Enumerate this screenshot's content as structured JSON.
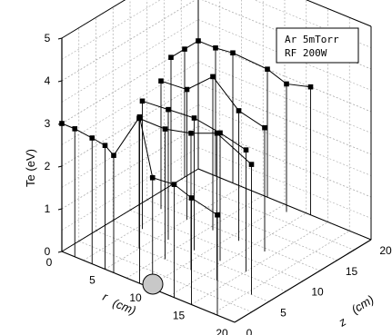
{
  "chart_data": {
    "type": "scatter",
    "projection": "3d",
    "title": "",
    "legend_lines": [
      "Ar 5mTorr",
      "RF 200W"
    ],
    "zlabel": "Te (eV)",
    "rlabel_main": "r",
    "rlabel_unit": "(cm)",
    "zaxis_label_main": "z",
    "zaxis_label_unit": "(cm)",
    "te_ticks": [
      "0",
      "1",
      "2",
      "3",
      "4",
      "5"
    ],
    "r_ticks": [
      "0",
      "5",
      "10",
      "15",
      "20"
    ],
    "z_ticks": [
      "0",
      "5",
      "10",
      "15",
      "20"
    ],
    "te_range": [
      0,
      5
    ],
    "r_range": [
      0,
      20
    ],
    "z_range": [
      0,
      20
    ],
    "grid": true,
    "series": [
      {
        "points": [
          {
            "r": 0,
            "z": 0,
            "te": 3.0
          },
          {
            "r": 1.5,
            "z": 0,
            "te": 3.0
          },
          {
            "r": 3.5,
            "z": 0,
            "te": 2.95
          },
          {
            "r": 5,
            "z": 0,
            "te": 2.9
          },
          {
            "r": 6,
            "z": 0,
            "te": 2.75
          },
          {
            "r": 9,
            "z": 0,
            "te": 3.9
          },
          {
            "r": 10.5,
            "z": 0,
            "te": 2.6
          },
          {
            "r": 13,
            "z": 0,
            "te": 2.65
          },
          {
            "r": 15,
            "z": 0,
            "te": 2.5
          },
          {
            "r": 18,
            "z": 0,
            "te": 2.35
          }
        ]
      },
      {
        "points": [
          {
            "r": 5,
            "z": 5,
            "te": 3.05
          },
          {
            "r": 8,
            "z": 5,
            "te": 3.05
          },
          {
            "r": 11,
            "z": 5,
            "te": 3.2
          },
          {
            "r": 14,
            "z": 5,
            "te": 3.45
          },
          {
            "r": 18,
            "z": 5,
            "te": 3.05
          }
        ]
      },
      {
        "points": [
          {
            "r": 3,
            "z": 8,
            "te": 3.0
          },
          {
            "r": 6,
            "z": 8,
            "te": 3.05
          },
          {
            "r": 9,
            "z": 8,
            "te": 3.1
          },
          {
            "r": 12,
            "z": 8,
            "te": 3.0
          },
          {
            "r": 15,
            "z": 8,
            "te": 2.85
          }
        ]
      },
      {
        "points": [
          {
            "r": 2,
            "z": 12,
            "te": 3.0
          },
          {
            "r": 5,
            "z": 12,
            "te": 3.05
          },
          {
            "r": 8,
            "z": 12,
            "te": 3.6
          },
          {
            "r": 11,
            "z": 12,
            "te": 3.05
          },
          {
            "r": 14,
            "z": 12,
            "te": 2.9
          }
        ]
      },
      {
        "points": [
          {
            "r": 0,
            "z": 16,
            "te": 3.0
          },
          {
            "r": 0,
            "z": 18,
            "te": 3.0
          },
          {
            "r": 0,
            "z": 20,
            "te": 3.0
          },
          {
            "r": 2,
            "z": 20,
            "te": 3.0
          },
          {
            "r": 4,
            "z": 20,
            "te": 3.05
          },
          {
            "r": 8,
            "z": 20,
            "te": 3.0
          },
          {
            "r": 11,
            "z": 19,
            "te": 3.0
          },
          {
            "r": 13,
            "z": 20,
            "te": 3.0
          }
        ]
      }
    ]
  }
}
